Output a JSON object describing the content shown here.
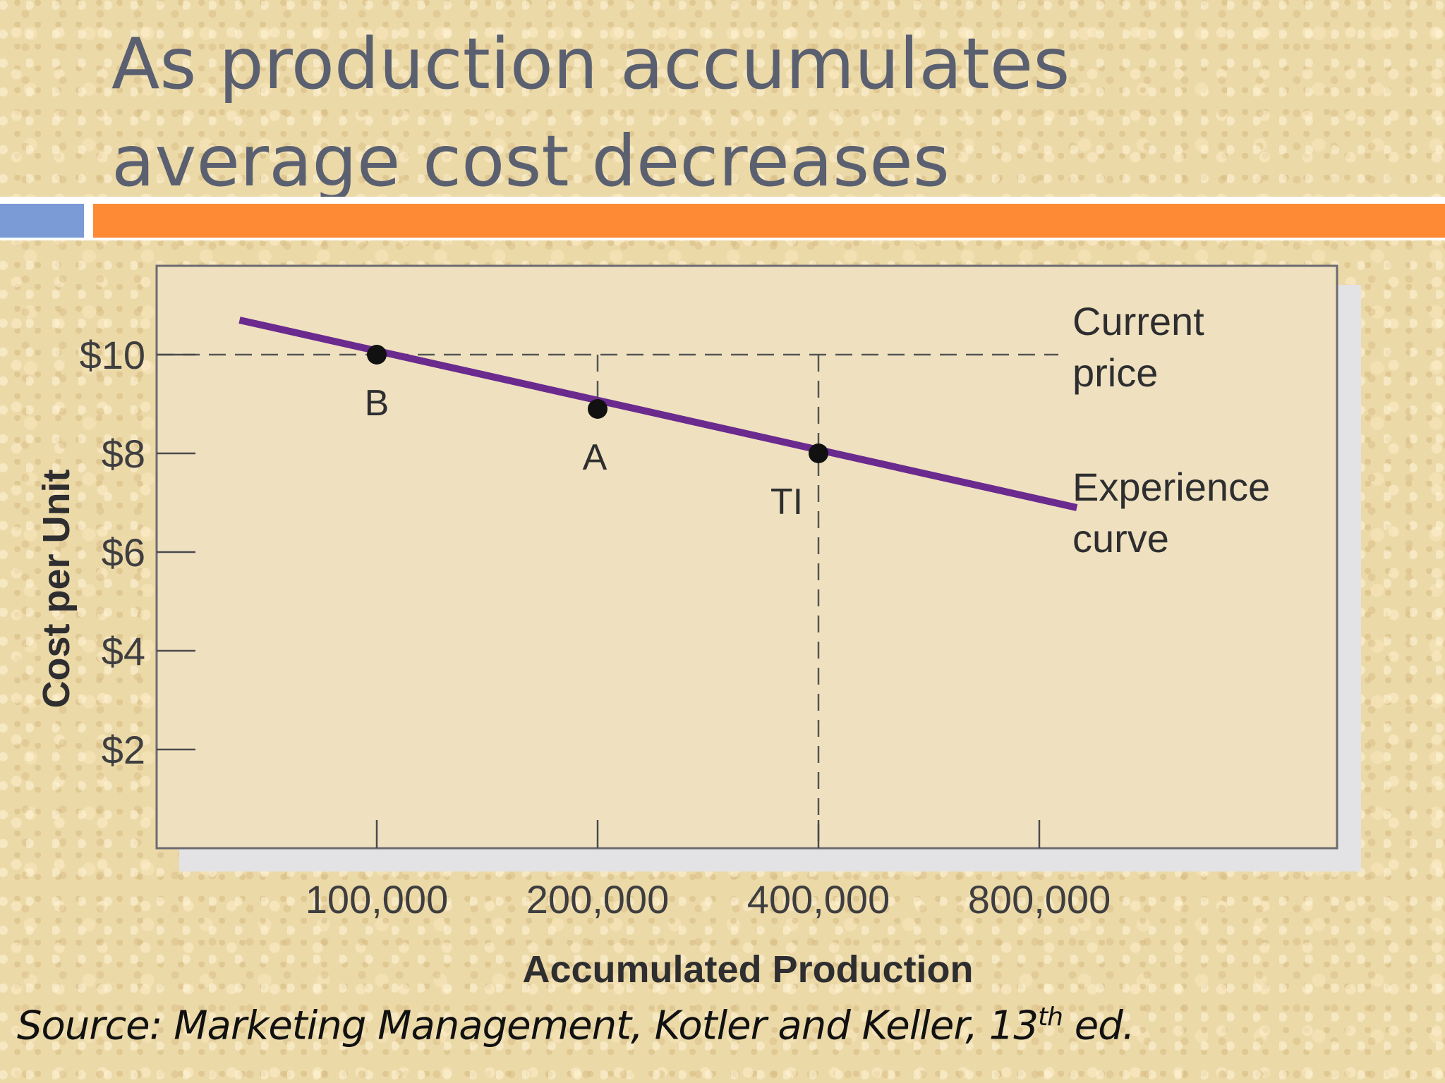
{
  "slide": {
    "title_line1": "As production accumulates",
    "title_line2": "average cost decreases",
    "source_prefix": "Source: Marketing Management, Kotler and Keller, 13",
    "source_sup": "th",
    "source_suffix": " ed."
  },
  "colors": {
    "title": "#5a6070",
    "accent_blue": "#7b9bd6",
    "accent_orange": "#ff8a35",
    "curve": "#6a2a8e",
    "plot_bg": "#efe1bf"
  },
  "chart_data": {
    "type": "line",
    "title": "",
    "xlabel": "Accumulated Production",
    "ylabel": "Cost per Unit",
    "x_tick_labels": [
      "100,000",
      "200,000",
      "400,000",
      "800,000"
    ],
    "x_scale": "log",
    "y_tick_labels": [
      "$2",
      "$4",
      "$6",
      "$8",
      "$10"
    ],
    "y_ticks": [
      2,
      4,
      6,
      8,
      10
    ],
    "ylim": [
      0,
      11.8
    ],
    "grid": false,
    "series": [
      {
        "name": "Experience curve",
        "x": [
          65000,
          900000
        ],
        "y": [
          10.7,
          6.9
        ]
      }
    ],
    "points": [
      {
        "label": "B",
        "x": 100000,
        "y": 10
      },
      {
        "label": "A",
        "x": 200000,
        "y": 8.9
      },
      {
        "label": "TI",
        "x": 400000,
        "y": 8
      }
    ],
    "reference_line": {
      "label_line1": "Current",
      "label_line2": "price",
      "y": 10
    },
    "curve_label": {
      "line1": "Experience",
      "line2": "curve"
    }
  }
}
